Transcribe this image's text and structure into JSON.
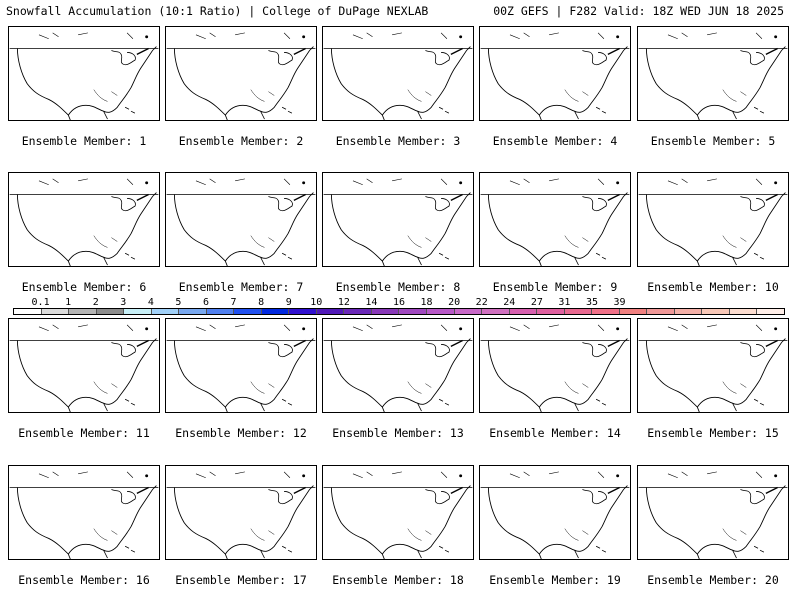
{
  "header": {
    "left": "Snowfall Accumulation (10:1 Ratio) | College of DuPage NEXLAB",
    "right": "00Z GEFS | F282 Valid: 18Z WED JUN 18 2025"
  },
  "colorbar": {
    "tick_labels": [
      "0.1",
      "1",
      "2",
      "3",
      "4",
      "5",
      "6",
      "7",
      "8",
      "9",
      "10",
      "12",
      "14",
      "16",
      "18",
      "20",
      "22",
      "24",
      "27",
      "31",
      "35",
      "39"
    ],
    "colors": [
      "#ffffff",
      "#dcdcdc",
      "#b4b4b4",
      "#8c8c8c",
      "#c8f0f8",
      "#a0d0f8",
      "#78a8f0",
      "#5080f0",
      "#2050f0",
      "#0028e0",
      "#3010d0",
      "#5018b8",
      "#6a28b8",
      "#8838b8",
      "#a048c0",
      "#b858c8",
      "#c868c8",
      "#d070c0",
      "#d860b0",
      "#e060a0",
      "#e86890",
      "#f07088",
      "#f08080",
      "#f09898",
      "#f4b0a8",
      "#f8c8b8",
      "#fcddd0",
      "#ffeee8"
    ]
  },
  "panels": [
    {
      "caption": "Ensemble Member: 1"
    },
    {
      "caption": "Ensemble Member: 2"
    },
    {
      "caption": "Ensemble Member: 3"
    },
    {
      "caption": "Ensemble Member: 4"
    },
    {
      "caption": "Ensemble Member: 5"
    },
    {
      "caption": "Ensemble Member: 6"
    },
    {
      "caption": "Ensemble Member: 7"
    },
    {
      "caption": "Ensemble Member: 8"
    },
    {
      "caption": "Ensemble Member: 9"
    },
    {
      "caption": "Ensemble Member: 10"
    },
    {
      "caption": "Ensemble Member: 11"
    },
    {
      "caption": "Ensemble Member: 12"
    },
    {
      "caption": "Ensemble Member: 13"
    },
    {
      "caption": "Ensemble Member: 14"
    },
    {
      "caption": "Ensemble Member: 15"
    },
    {
      "caption": "Ensemble Member: 16"
    },
    {
      "caption": "Ensemble Member: 17"
    },
    {
      "caption": "Ensemble Member: 18"
    },
    {
      "caption": "Ensemble Member: 19"
    },
    {
      "caption": "Ensemble Member: 20"
    }
  ]
}
